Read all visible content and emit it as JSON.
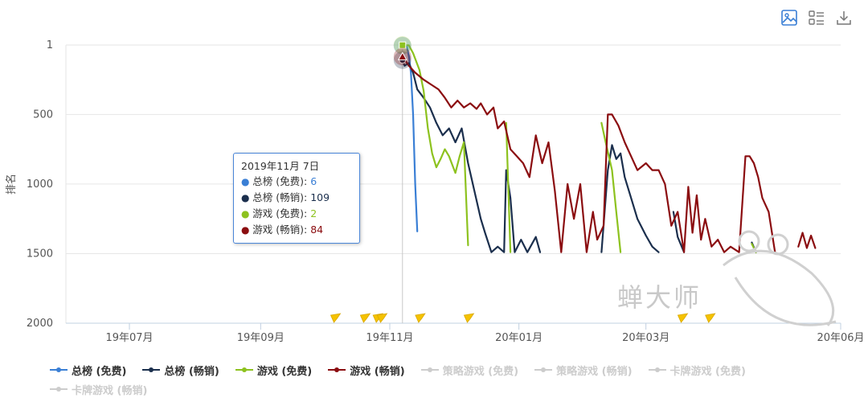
{
  "toolbar": {
    "icons": [
      "image-icon",
      "list-icon",
      "download-icon"
    ]
  },
  "chart_data": {
    "type": "line",
    "ylabel": "排名",
    "xlabel": "",
    "y_reversed": true,
    "ylim": [
      1,
      2000
    ],
    "y_ticks": [
      1,
      500,
      1000,
      1500,
      2000
    ],
    "x_tick_labels": [
      "19年07月",
      "19年09月",
      "19年11月",
      "20年01月",
      "20年03月",
      "20年06月"
    ],
    "x_tick_dates": [
      "2019-07-01",
      "2019-09-01",
      "2019-11-01",
      "2020-01-01",
      "2020-03-01",
      "2020-06-01"
    ],
    "xlim": [
      "2019-06-01",
      "2020-06-01"
    ],
    "grid": true,
    "legend_position": "bottom",
    "series": [
      {
        "name": "总榜 (免费)",
        "color": "#3a7fd5",
        "points": [
          [
            "2019-11-07",
            6
          ],
          [
            "2019-11-09",
            8
          ],
          [
            "2019-11-10",
            80
          ],
          [
            "2019-11-11",
            200
          ],
          [
            "2019-11-12",
            500
          ],
          [
            "2019-11-13",
            1000
          ],
          [
            "2019-11-14",
            1340
          ]
        ]
      },
      {
        "name": "总榜 (畅销)",
        "color": "#1b2f4d",
        "points": [
          [
            "2019-11-07",
            109
          ],
          [
            "2019-11-08",
            150
          ],
          [
            "2019-11-10",
            130
          ],
          [
            "2019-11-12",
            200
          ],
          [
            "2019-11-14",
            320
          ],
          [
            "2019-11-17",
            380
          ],
          [
            "2019-11-20",
            450
          ],
          [
            "2019-11-23",
            560
          ],
          [
            "2019-11-26",
            650
          ],
          [
            "2019-11-29",
            600
          ],
          [
            "2019-12-02",
            700
          ],
          [
            "2019-12-05",
            600
          ],
          [
            "2019-12-08",
            850
          ],
          [
            "2019-12-11",
            1050
          ],
          [
            "2019-12-14",
            1250
          ],
          [
            "2019-12-16",
            1350
          ],
          [
            "2019-12-19",
            1490
          ],
          [
            "2019-12-22",
            1450
          ],
          [
            "2019-12-25",
            1490
          ],
          [
            "2019-12-26",
            900
          ],
          [
            "2019-12-28",
            1100
          ],
          [
            "2019-12-30",
            1490
          ],
          [
            "2020-01-02",
            1400
          ],
          [
            "2020-01-05",
            1490
          ],
          [
            "2020-01-09",
            1380
          ],
          [
            "2020-01-11",
            1490
          ],
          [
            "2020-02-09",
            1490
          ],
          [
            "2020-02-12",
            900
          ],
          [
            "2020-02-14",
            720
          ],
          [
            "2020-02-16",
            820
          ],
          [
            "2020-02-18",
            780
          ],
          [
            "2020-02-20",
            950
          ],
          [
            "2020-02-23",
            1100
          ],
          [
            "2020-02-26",
            1250
          ],
          [
            "2020-03-01",
            1370
          ],
          [
            "2020-03-04",
            1450
          ],
          [
            "2020-03-07",
            1490
          ],
          [
            "2020-03-14",
            1200
          ],
          [
            "2020-03-16",
            1380
          ],
          [
            "2020-03-19",
            1490
          ],
          [
            "2020-04-20",
            1420
          ],
          [
            "2020-04-22",
            1490
          ]
        ]
      },
      {
        "name": "游戏 (免费)",
        "color": "#8dc21f",
        "points": [
          [
            "2019-11-07",
            2
          ],
          [
            "2019-11-10",
            3
          ],
          [
            "2019-11-12",
            60
          ],
          [
            "2019-11-15",
            180
          ],
          [
            "2019-11-17",
            330
          ],
          [
            "2019-11-19",
            600
          ],
          [
            "2019-11-21",
            780
          ],
          [
            "2019-11-23",
            880
          ],
          [
            "2019-11-25",
            820
          ],
          [
            "2019-11-27",
            750
          ],
          [
            "2019-11-29",
            800
          ],
          [
            "2019-12-02",
            920
          ],
          [
            "2019-12-04",
            800
          ],
          [
            "2019-12-06",
            700
          ],
          [
            "2019-12-08",
            1440
          ],
          [
            "2019-12-26",
            560
          ],
          [
            "2019-12-28",
            1490
          ],
          [
            "2020-02-09",
            560
          ],
          [
            "2020-02-11",
            700
          ],
          [
            "2020-02-14",
            900
          ],
          [
            "2020-02-16",
            1200
          ],
          [
            "2020-02-18",
            1490
          ],
          [
            "2020-04-20",
            1430
          ],
          [
            "2020-04-22",
            1490
          ]
        ]
      },
      {
        "name": "游戏 (畅销)",
        "color": "#8b0d10",
        "points": [
          [
            "2019-11-07",
            84
          ],
          [
            "2019-11-10",
            150
          ],
          [
            "2019-11-13",
            200
          ],
          [
            "2019-11-17",
            250
          ],
          [
            "2019-11-21",
            290
          ],
          [
            "2019-11-24",
            320
          ],
          [
            "2019-11-27",
            380
          ],
          [
            "2019-11-30",
            450
          ],
          [
            "2019-12-03",
            400
          ],
          [
            "2019-12-06",
            450
          ],
          [
            "2019-12-09",
            420
          ],
          [
            "2019-12-12",
            460
          ],
          [
            "2019-12-14",
            420
          ],
          [
            "2019-12-17",
            500
          ],
          [
            "2019-12-20",
            450
          ],
          [
            "2019-12-22",
            600
          ],
          [
            "2019-12-25",
            550
          ],
          [
            "2019-12-28",
            750
          ],
          [
            "2019-12-31",
            800
          ],
          [
            "2020-01-03",
            850
          ],
          [
            "2020-01-06",
            950
          ],
          [
            "2020-01-09",
            650
          ],
          [
            "2020-01-12",
            850
          ],
          [
            "2020-01-15",
            700
          ],
          [
            "2020-01-18",
            1050
          ],
          [
            "2020-01-21",
            1490
          ],
          [
            "2020-01-24",
            1000
          ],
          [
            "2020-01-27",
            1250
          ],
          [
            "2020-01-30",
            1000
          ],
          [
            "2020-02-02",
            1490
          ],
          [
            "2020-02-05",
            1200
          ],
          [
            "2020-02-07",
            1400
          ],
          [
            "2020-02-10",
            1300
          ],
          [
            "2020-02-12",
            500
          ],
          [
            "2020-02-14",
            500
          ],
          [
            "2020-02-17",
            580
          ],
          [
            "2020-02-20",
            700
          ],
          [
            "2020-02-23",
            800
          ],
          [
            "2020-02-26",
            900
          ],
          [
            "2020-03-01",
            850
          ],
          [
            "2020-03-04",
            900
          ],
          [
            "2020-03-07",
            900
          ],
          [
            "2020-03-10",
            1000
          ],
          [
            "2020-03-13",
            1300
          ],
          [
            "2020-03-16",
            1200
          ],
          [
            "2020-03-19",
            1490
          ],
          [
            "2020-03-21",
            1020
          ],
          [
            "2020-03-23",
            1350
          ],
          [
            "2020-03-25",
            1080
          ],
          [
            "2020-03-27",
            1400
          ],
          [
            "2020-03-29",
            1250
          ],
          [
            "2020-04-01",
            1450
          ],
          [
            "2020-04-04",
            1400
          ],
          [
            "2020-04-07",
            1490
          ],
          [
            "2020-04-10",
            1450
          ],
          [
            "2020-04-14",
            1490
          ],
          [
            "2020-04-17",
            800
          ],
          [
            "2020-04-19",
            800
          ],
          [
            "2020-04-21",
            850
          ],
          [
            "2020-04-23",
            950
          ],
          [
            "2020-04-25",
            1100
          ],
          [
            "2020-04-28",
            1200
          ],
          [
            "2020-05-01",
            1490
          ],
          [
            "2020-05-12",
            1450
          ],
          [
            "2020-05-14",
            1350
          ],
          [
            "2020-05-16",
            1460
          ],
          [
            "2020-05-18",
            1370
          ],
          [
            "2020-05-20",
            1460
          ]
        ]
      },
      {
        "name": "策略游戏 (免费)",
        "color": "#cccccc",
        "hidden": true,
        "points": []
      },
      {
        "name": "策略游戏 (畅销)",
        "color": "#cccccc",
        "hidden": true,
        "points": []
      },
      {
        "name": "卡牌游戏 (免费)",
        "color": "#cccccc",
        "hidden": true,
        "points": []
      },
      {
        "name": "卡牌游戏 (畅销)",
        "color": "#cccccc",
        "hidden": true,
        "points": []
      }
    ],
    "event_flags": [
      "2019-10-06",
      "2019-10-20",
      "2019-10-26",
      "2019-10-28",
      "2019-11-15",
      "2019-12-08",
      "2020-03-18",
      "2020-03-31"
    ],
    "highlight_date": "2019-11-07",
    "tooltip": {
      "date": "2019年11月 7日",
      "rows": [
        {
          "label": "总榜 (免费)",
          "value": "6",
          "color": "#3a7fd5"
        },
        {
          "label": "总榜 (畅销)",
          "value": "109",
          "color": "#1b2f4d"
        },
        {
          "label": "游戏 (免费)",
          "value": "2",
          "color": "#8dc21f"
        },
        {
          "label": "游戏 (畅销)",
          "value": "84",
          "color": "#8b0d10"
        }
      ]
    }
  },
  "watermark": "蝉大师"
}
